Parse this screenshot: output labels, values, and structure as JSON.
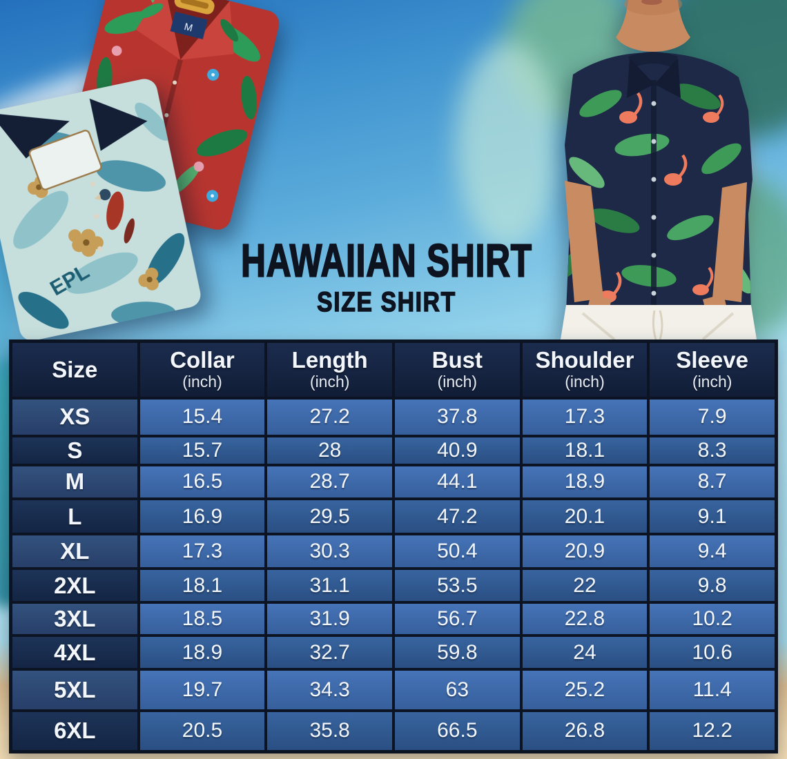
{
  "page": {
    "title_main": "HAWAIIAN SHIRT",
    "title_sub": "SIZE SHIRT"
  },
  "chart_data": {
    "type": "table",
    "title": "HAWAIIAN SHIRT",
    "subtitle": "SIZE SHIRT",
    "columns": [
      {
        "label": "Size",
        "unit": ""
      },
      {
        "label": "Collar",
        "unit": "(inch)"
      },
      {
        "label": "Length",
        "unit": "(inch)"
      },
      {
        "label": "Bust",
        "unit": "(inch)"
      },
      {
        "label": "Shoulder",
        "unit": "(inch)"
      },
      {
        "label": "Sleeve",
        "unit": "(inch)"
      }
    ],
    "rows": [
      {
        "size": "XS",
        "values": [
          "15.4",
          "27.2",
          "37.8",
          "17.3",
          "7.9"
        ]
      },
      {
        "size": "S",
        "values": [
          "15.7",
          "28",
          "40.9",
          "18.1",
          "8.3"
        ]
      },
      {
        "size": "M",
        "values": [
          "16.5",
          "28.7",
          "44.1",
          "18.9",
          "8.7"
        ]
      },
      {
        "size": "L",
        "values": [
          "16.9",
          "29.5",
          "47.2",
          "20.1",
          "9.1"
        ]
      },
      {
        "size": "XL",
        "values": [
          "17.3",
          "30.3",
          "50.4",
          "20.9",
          "9.4"
        ]
      },
      {
        "size": "2XL",
        "values": [
          "18.1",
          "31.1",
          "53.5",
          "22",
          "9.8"
        ]
      },
      {
        "size": "3XL",
        "values": [
          "18.5",
          "31.9",
          "56.7",
          "22.8",
          "10.2"
        ]
      },
      {
        "size": "4XL",
        "values": [
          "18.9",
          "32.7",
          "59.8",
          "24",
          "10.6"
        ]
      },
      {
        "size": "5XL",
        "values": [
          "19.7",
          "34.3",
          "63",
          "25.2",
          "11.4"
        ]
      },
      {
        "size": "6XL",
        "values": [
          "20.5",
          "35.8",
          "66.5",
          "26.8",
          "12.2"
        ]
      }
    ]
  },
  "photos": {
    "left": {
      "name": "folded-hawaiian-shirts",
      "red_shirt_size_tag": "M",
      "teal_shirt_print_text": "EPL"
    },
    "right": {
      "name": "man-wearing-flamingo-hawaiian-shirt"
    }
  },
  "colors": {
    "header_bg": "#16243f",
    "row_odd_label": "#2c4a74",
    "row_odd_value": "#3a67a7",
    "row_even_label": "#17294b",
    "row_even_value": "#2e568d",
    "grid_border": "#0c1322",
    "table_text": "#f3f7fc",
    "title_text": "#0d131f",
    "sky": "#5cacdb",
    "sand": "#eed7ad"
  }
}
